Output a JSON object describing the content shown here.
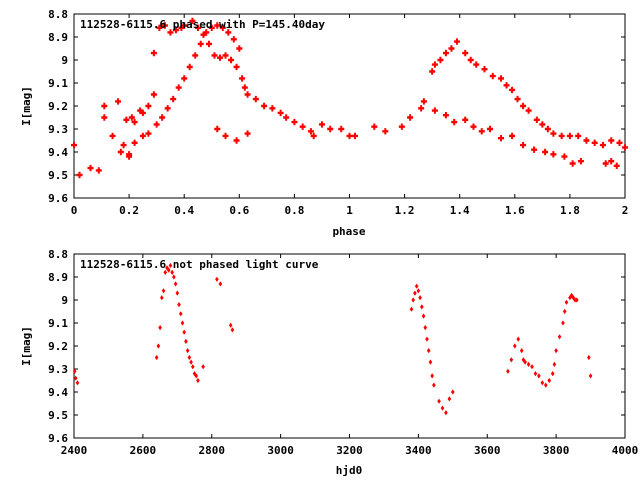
{
  "chart_data": [
    {
      "type": "scatter",
      "title": "112528-6115.6 phased with P=145.40day",
      "xlabel": "phase",
      "ylabel": "I[mag]",
      "xlim": [
        0,
        2
      ],
      "ylim": [
        9.6,
        8.8
      ],
      "y_inverted": true,
      "grid": false,
      "legend": "none",
      "color": "#ff0000",
      "xticks": [
        "0",
        "0.2",
        "0.4",
        "0.6",
        "0.8",
        "1",
        "1.2",
        "1.4",
        "1.6",
        "1.8",
        "2"
      ],
      "yticks": [
        "8.8",
        "8.9",
        "9",
        "9.1",
        "9.2",
        "9.3",
        "9.4",
        "9.5",
        "9.6"
      ],
      "x": [
        0.0,
        0.02,
        0.06,
        0.09,
        0.11,
        0.11,
        0.14,
        0.16,
        0.17,
        0.19,
        0.2,
        0.21,
        0.22,
        0.24,
        0.25,
        0.27,
        0.29,
        0.29,
        0.31,
        0.33,
        0.35,
        0.37,
        0.39,
        0.4,
        0.43,
        0.45,
        0.47,
        0.49,
        0.51,
        0.53,
        0.55,
        0.57,
        0.59,
        0.61,
        0.62,
        0.63,
        0.66,
        0.69,
        0.72,
        0.75,
        0.77,
        0.8,
        0.83,
        0.86,
        0.87,
        0.9,
        0.93,
        0.97,
        1.0,
        1.02,
        1.09,
        1.13,
        1.19,
        1.22,
        1.26,
        1.3,
        1.31,
        1.33,
        1.35,
        1.37,
        1.39,
        1.42,
        1.44,
        1.46,
        1.49,
        1.52,
        1.55,
        1.57,
        1.59,
        1.61,
        1.63,
        1.65,
        1.68,
        1.7,
        1.72,
        1.74,
        1.77,
        1.8,
        1.83,
        1.86,
        1.89,
        1.92,
        1.95,
        1.98,
        2.0,
        0.18,
        0.2,
        0.22,
        0.25,
        0.27,
        0.3,
        0.32,
        0.34,
        0.36,
        0.38,
        0.4,
        0.42,
        0.44,
        0.46,
        0.48,
        0.5,
        0.52,
        0.54,
        0.56,
        0.58,
        0.6,
        0.52,
        0.55,
        0.59,
        0.63,
        1.27,
        1.31,
        1.35,
        1.38,
        1.42,
        1.45,
        1.48,
        1.51,
        1.55,
        1.59,
        1.63,
        1.67,
        1.71,
        1.74,
        1.78,
        1.81,
        1.84,
        1.93,
        1.95,
        1.97
      ],
      "y": [
        9.37,
        9.5,
        9.47,
        9.48,
        9.2,
        9.25,
        9.33,
        9.18,
        9.4,
        9.26,
        9.42,
        9.25,
        9.27,
        9.22,
        9.23,
        9.2,
        9.15,
        8.97,
        8.86,
        8.85,
        8.88,
        8.87,
        8.86,
        8.85,
        8.83,
        8.86,
        8.89,
        8.93,
        8.98,
        8.99,
        8.98,
        9.0,
        9.03,
        9.08,
        9.12,
        9.15,
        9.17,
        9.2,
        9.21,
        9.23,
        9.25,
        9.27,
        9.29,
        9.31,
        9.33,
        9.28,
        9.3,
        9.3,
        9.33,
        9.33,
        9.29,
        9.31,
        9.29,
        9.25,
        9.21,
        9.05,
        9.02,
        9.0,
        8.97,
        8.95,
        8.92,
        8.97,
        9.0,
        9.02,
        9.04,
        9.07,
        9.08,
        9.11,
        9.13,
        9.17,
        9.2,
        9.22,
        9.26,
        9.28,
        9.3,
        9.32,
        9.33,
        9.33,
        9.33,
        9.35,
        9.36,
        9.37,
        9.35,
        9.36,
        9.38,
        9.37,
        9.41,
        9.36,
        9.33,
        9.32,
        9.28,
        9.25,
        9.21,
        9.17,
        9.12,
        9.08,
        9.03,
        8.98,
        8.93,
        8.88,
        8.86,
        8.85,
        8.86,
        8.88,
        8.91,
        8.95,
        9.3,
        9.33,
        9.35,
        9.32,
        9.18,
        9.22,
        9.24,
        9.27,
        9.26,
        9.29,
        9.31,
        9.3,
        9.34,
        9.33,
        9.37,
        9.39,
        9.4,
        9.41,
        9.42,
        9.45,
        9.44,
        9.45,
        9.44,
        9.46
      ]
    },
    {
      "type": "scatter",
      "title": "112528-6115.6 not phased light curve",
      "xlabel": "hjd0",
      "ylabel": "I[mag]",
      "xlim": [
        2400,
        4000
      ],
      "ylim": [
        9.6,
        8.8
      ],
      "y_inverted": true,
      "grid": false,
      "legend": "none",
      "color": "#ff0000",
      "xticks": [
        "2400",
        "2600",
        "2800",
        "3000",
        "3200",
        "3400",
        "3600",
        "3800",
        "4000"
      ],
      "yticks": [
        "8.8",
        "8.9",
        "9",
        "9.1",
        "9.2",
        "9.3",
        "9.4",
        "9.5",
        "9.6"
      ],
      "x": [
        2402,
        2405,
        2410,
        2640,
        2645,
        2650,
        2655,
        2660,
        2665,
        2670,
        2675,
        2680,
        2685,
        2690,
        2695,
        2700,
        2705,
        2710,
        2715,
        2720,
        2725,
        2730,
        2735,
        2740,
        2745,
        2750,
        2755,
        2760,
        2775,
        2815,
        2825,
        2855,
        2860,
        3380,
        3385,
        3390,
        3395,
        3400,
        3405,
        3410,
        3415,
        3420,
        3425,
        3430,
        3435,
        3440,
        3445,
        3460,
        3470,
        3480,
        3490,
        3500,
        3660,
        3670,
        3680,
        3690,
        3700,
        3705,
        3710,
        3720,
        3730,
        3740,
        3750,
        3760,
        3770,
        3780,
        3790,
        3795,
        3800,
        3810,
        3820,
        3825,
        3830,
        3840,
        3845,
        3850,
        3855,
        3860,
        3895,
        3900
      ],
      "y": [
        9.31,
        9.34,
        9.36,
        9.25,
        9.2,
        9.12,
        8.99,
        8.96,
        8.88,
        8.86,
        8.87,
        8.85,
        8.88,
        8.9,
        8.93,
        8.97,
        9.02,
        9.06,
        9.1,
        9.14,
        9.18,
        9.22,
        9.25,
        9.27,
        9.29,
        9.32,
        9.33,
        9.35,
        9.29,
        8.91,
        8.93,
        9.11,
        9.13,
        9.04,
        9.0,
        8.97,
        8.94,
        8.96,
        8.99,
        9.03,
        9.07,
        9.12,
        9.17,
        9.22,
        9.27,
        9.33,
        9.37,
        9.44,
        9.47,
        9.49,
        9.43,
        9.4,
        9.31,
        9.26,
        9.2,
        9.17,
        9.22,
        9.26,
        9.27,
        9.28,
        9.29,
        9.32,
        9.33,
        9.36,
        9.37,
        9.35,
        9.32,
        9.28,
        9.22,
        9.16,
        9.1,
        9.05,
        9.01,
        8.99,
        8.98,
        8.99,
        9.0,
        9.0,
        9.25,
        9.33
      ]
    }
  ]
}
